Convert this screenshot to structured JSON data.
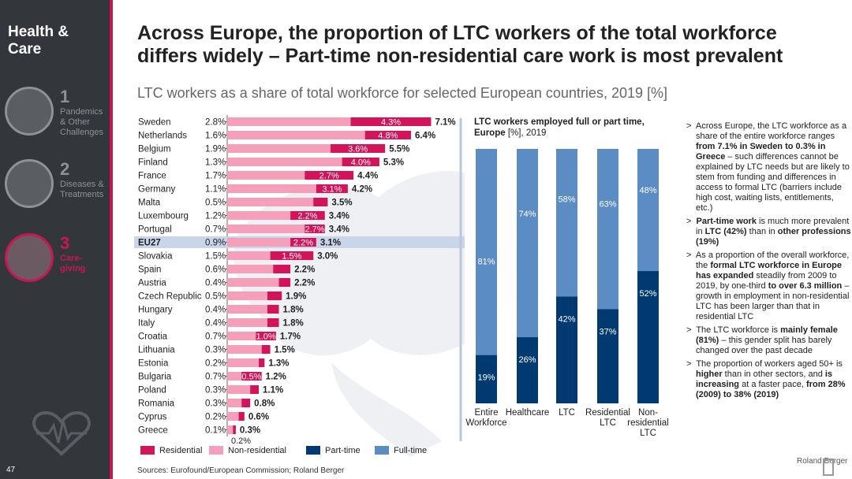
{
  "sidebar": {
    "brand": "Health & Care",
    "items": [
      {
        "num": "1",
        "label": "Pandemics & Other Challenges",
        "active": false
      },
      {
        "num": "2",
        "label": "Diseases & Treatments",
        "active": false
      },
      {
        "num": "3",
        "label": "Care-giving",
        "active": true
      }
    ],
    "page_number": "47"
  },
  "title": "Across Europe, the proportion of LTC workers of the total workforce differs widely – Part-time non-residential care work is most prevalent",
  "subtitle": "LTC workers as a share of total workforce for selected European countries, 2019 [%]",
  "colors": {
    "residential": "#d4145a",
    "non_residential": "#f59fba",
    "part_time": "#003a70",
    "full_time": "#5b8cc4",
    "accent": "#c8174f"
  },
  "chart_data": [
    {
      "type": "bar",
      "orientation": "horizontal",
      "stacked": true,
      "title": "",
      "categories": [
        "Sweden",
        "Netherlands",
        "Belgium",
        "Finland",
        "France",
        "Germany",
        "Malta",
        "Luxembourg",
        "Portugal",
        "EU27",
        "Slovakia",
        "Spain",
        "Austria",
        "Czech Republic",
        "Hungary",
        "Italy",
        "Croatia",
        "Lithuania",
        "Estonia",
        "Bulgaria",
        "Poland",
        "Romania",
        "Cyprus",
        "Greece"
      ],
      "highlight": "EU27",
      "series": [
        {
          "name": "Residential",
          "color": "#d4145a",
          "values": [
            2.8,
            1.6,
            1.9,
            1.3,
            1.7,
            1.1,
            0.5,
            1.2,
            0.7,
            0.9,
            1.5,
            0.6,
            0.4,
            0.5,
            0.4,
            0.4,
            0.7,
            0.3,
            0.2,
            0.7,
            0.3,
            0.3,
            0.2,
            0.1
          ]
        },
        {
          "name": "Non-residential",
          "color": "#f59fba",
          "values": [
            4.3,
            4.8,
            3.6,
            4.0,
            2.7,
            3.1,
            3.0,
            2.2,
            2.7,
            2.2,
            1.5,
            1.6,
            1.8,
            1.4,
            1.4,
            1.4,
            1.0,
            1.2,
            1.1,
            0.5,
            0.8,
            0.5,
            0.4,
            0.2
          ]
        }
      ],
      "totals": [
        7.1,
        6.4,
        5.5,
        5.3,
        4.4,
        4.2,
        3.5,
        3.4,
        3.4,
        3.1,
        3.0,
        2.2,
        2.2,
        1.9,
        1.8,
        1.8,
        1.7,
        1.5,
        1.3,
        1.2,
        1.1,
        0.8,
        0.6,
        0.3
      ],
      "residential_labels": [
        "2.8%",
        "1.6%",
        "1.9%",
        "1.3%",
        "1.7%",
        "1.1%",
        "0.5%",
        "1.2%",
        "0.7%",
        "0.9%",
        "1.5%",
        "0.6%",
        "0.4%",
        "0.5%",
        "0.4%",
        "0.4%",
        "0.7%",
        "0.3%",
        "0.2%",
        "0.7%",
        "0.3%",
        "0.3%",
        "0.2%",
        "0.1%"
      ],
      "non_residential_labels": [
        "4.3%",
        "4.8%",
        "3.6%",
        "4.0%",
        "2.7%",
        "3.1%",
        "3.0%",
        "2.2%",
        "2.7%",
        "2.2%",
        "1.5%",
        "1.6%",
        "1.8%",
        "1.4%",
        "1.4%",
        "1.4%",
        "1.0%",
        "1.2%",
        "1.1%",
        "0.5%",
        "0.8%",
        "0.5%",
        "0.4%",
        "0.2%"
      ],
      "total_labels": [
        "7.1%",
        "6.4%",
        "5.5%",
        "5.3%",
        "4.4%",
        "4.2%",
        "3.5%",
        "3.4%",
        "3.4%",
        "3.1%",
        "3.0%",
        "2.2%",
        "2.2%",
        "1.9%",
        "1.8%",
        "1.8%",
        "1.7%",
        "1.5%",
        "1.3%",
        "1.2%",
        "1.1%",
        "0.8%",
        "0.6%",
        "0.3%"
      ],
      "legend": [
        "Residential",
        "Non-residential",
        "Part-time",
        "Full-time"
      ]
    },
    {
      "type": "bar",
      "stacked": true,
      "percent_stacked": true,
      "title": "LTC workers employed full or part time, Europe [%], 2019",
      "categories": [
        "Entire Workforce",
        "Healthcare",
        "LTC",
        "Residential LTC",
        "Non-residential LTC"
      ],
      "series": [
        {
          "name": "Part-time",
          "color": "#003a70",
          "values": [
            19,
            26,
            42,
            37,
            52
          ],
          "labels": [
            "19%",
            "26%",
            "42%",
            "37%",
            "52%"
          ]
        },
        {
          "name": "Full-time",
          "color": "#5b8cc4",
          "values": [
            81,
            74,
            58,
            63,
            48
          ],
          "labels": [
            "81%",
            "74%",
            "58%",
            "63%",
            "48%"
          ]
        }
      ]
    }
  ],
  "bullets": [
    {
      "html": "Across Europe, the LTC workforce as a share of the entire workforce ranges <b>from 7.1% in Sweden to 0.3% in Greece</b> – such differences cannot be explained by LTC needs but are likely to stem from funding and differences in access to formal LTC (barriers include high cost, waiting lists, entitlements, etc.)"
    },
    {
      "html": "<b>Part-time work</b> is much more prevalent in <b>LTC (42%)</b> than in <b>other professions (19%)</b>"
    },
    {
      "html": "As a proportion of the overall workforce, the <b>formal LTC workforce in Europe has expanded</b> steadily from 2009 to 2019, by one-third <b>to over 6.3 million</b> – growth in employment in non-residential LTC has been larger than that in residential LTC"
    },
    {
      "html": "The LTC workforce is <b>mainly female (81%)</b> – this gender split has barely changed over the past decade"
    },
    {
      "html": "The proportion of workers aged 50+ is <b>higher</b> than in other sectors, and <b>is increasing</b> at a faster pace, <b>from 28% (2009) to 38% (2019)</b>"
    }
  ],
  "source": "Sources: Eurofound/European Commission; Roland Berger",
  "logo": "Roland Berger"
}
